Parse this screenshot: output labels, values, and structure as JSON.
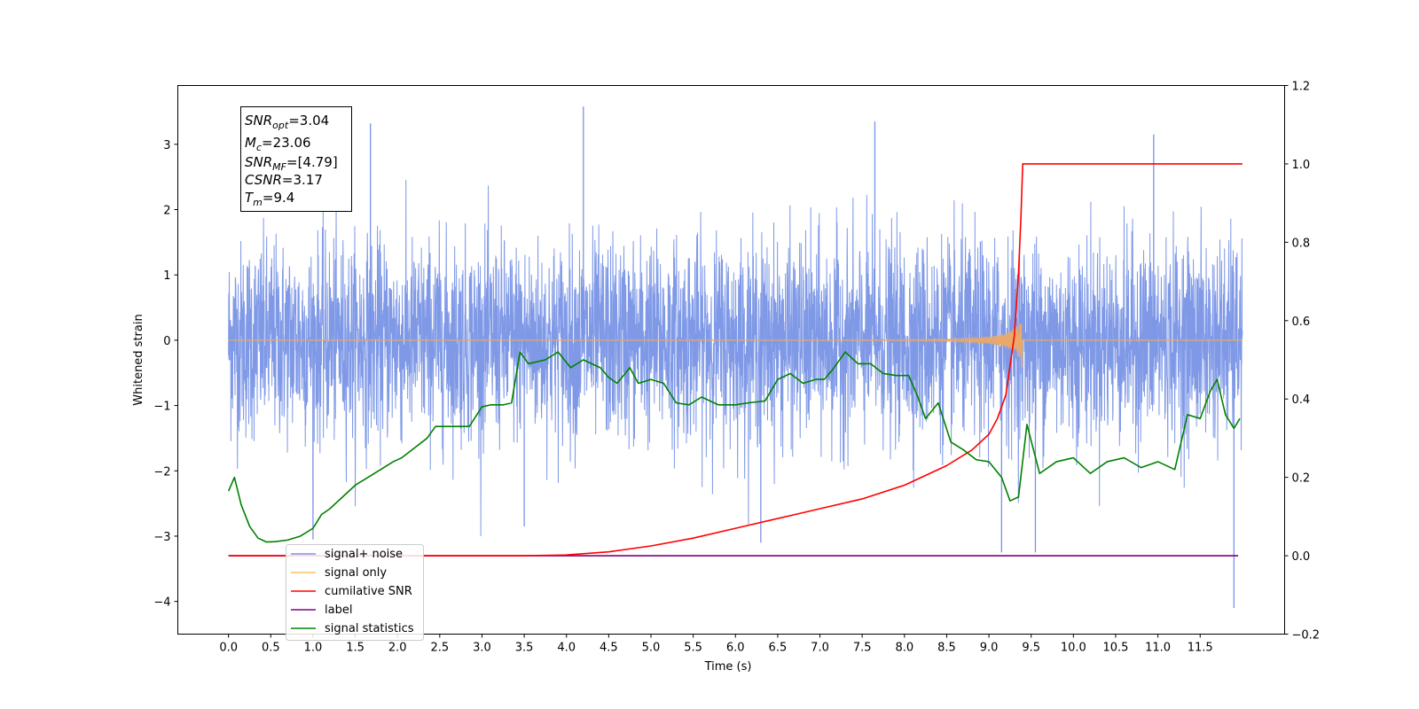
{
  "chart_data": {
    "type": "line",
    "xlabel": "Time (s)",
    "ylabel": "Whitened strain",
    "xlim": [
      -0.6,
      12.5
    ],
    "ylim": [
      -4.5,
      3.9
    ],
    "y2lim": [
      -0.2,
      1.2
    ],
    "x_ticks": [
      "0.0",
      "0.5",
      "1.0",
      "1.5",
      "2.0",
      "2.5",
      "3.0",
      "3.5",
      "4.0",
      "4.5",
      "5.0",
      "5.5",
      "6.0",
      "6.5",
      "7.0",
      "7.5",
      "8.0",
      "8.5",
      "9.0",
      "9.5",
      "10.0",
      "10.5",
      "11.0",
      "11.5"
    ],
    "y_ticks": [
      "3",
      "2",
      "1",
      "0",
      "−1",
      "−2",
      "−3",
      "−4"
    ],
    "y2_ticks": [
      "1.2",
      "1.0",
      "0.8",
      "0.6",
      "0.4",
      "0.2",
      "0.0",
      "−0.2"
    ],
    "annotation": {
      "lines": [
        {
          "sym": "SNR",
          "sub": "opt",
          "value": "=3.04"
        },
        {
          "sym": "M",
          "sub": "c",
          "value": "=23.06"
        },
        {
          "sym": "SNR",
          "sub": "MF",
          "value": "=[4.79]"
        },
        {
          "sym": "CSNR",
          "sub": "",
          "value": "=3.17"
        },
        {
          "sym": "T",
          "sub": "m",
          "value": "=9.4"
        }
      ]
    },
    "legend": {
      "position": "lower-left",
      "entries": [
        {
          "label": "signal+ noise",
          "color": "#7893e6"
        },
        {
          "label": "signal only",
          "color": "#fdbf5e"
        },
        {
          "label": "cumilative SNR",
          "color": "#ff0000"
        },
        {
          "label": "label",
          "color": "#800080"
        },
        {
          "label": "signal statistics",
          "color": "#008000"
        }
      ]
    },
    "series": [
      {
        "name": "signal+ noise",
        "axis": "left",
        "color": "#7893e6",
        "noise_sigma": 0.75,
        "x_range": [
          0.0,
          12.0
        ],
        "notable_spikes": [
          {
            "x": 4.2,
            "y": 3.58
          },
          {
            "x": 1.68,
            "y": 3.32
          },
          {
            "x": 7.65,
            "y": 3.35
          },
          {
            "x": 10.95,
            "y": 3.15
          },
          {
            "x": 11.9,
            "y": -4.1
          },
          {
            "x": 9.15,
            "y": -3.25
          },
          {
            "x": 9.55,
            "y": -3.25
          },
          {
            "x": 6.3,
            "y": -3.1
          },
          {
            "x": 1.0,
            "y": -3.05
          },
          {
            "x": 3.5,
            "y": -2.85
          }
        ]
      },
      {
        "name": "signal only",
        "axis": "left",
        "color": "#e8a96a",
        "chirp_end": 9.4,
        "peak_amplitude": 0.55,
        "x_range": [
          0.0,
          12.0
        ]
      },
      {
        "name": "cumilative SNR",
        "axis": "right",
        "color": "#ff0000",
        "x": [
          0.0,
          3.5,
          4.0,
          4.5,
          5.0,
          5.5,
          6.0,
          6.5,
          7.0,
          7.5,
          8.0,
          8.5,
          8.8,
          9.0,
          9.1,
          9.2,
          9.3,
          9.35,
          9.38,
          9.4,
          12.0
        ],
        "values": [
          0.0,
          0.0,
          0.002,
          0.01,
          0.025,
          0.045,
          0.07,
          0.095,
          0.12,
          0.145,
          0.18,
          0.23,
          0.27,
          0.31,
          0.35,
          0.41,
          0.56,
          0.72,
          0.87,
          1.0,
          1.0
        ]
      },
      {
        "name": "label",
        "axis": "right",
        "color": "#800080",
        "x": [
          0.0,
          11.95
        ],
        "values": [
          0.0,
          0.0
        ]
      },
      {
        "name": "signal statistics",
        "axis": "right",
        "color": "#008000",
        "x": [
          0.0,
          0.07,
          0.15,
          0.25,
          0.35,
          0.45,
          0.55,
          0.7,
          0.85,
          1.0,
          1.1,
          1.2,
          1.35,
          1.5,
          1.65,
          1.8,
          1.95,
          2.05,
          2.2,
          2.35,
          2.45,
          2.55,
          2.7,
          2.85,
          3.0,
          3.1,
          3.25,
          3.35,
          3.45,
          3.55,
          3.75,
          3.9,
          4.05,
          4.2,
          4.4,
          4.5,
          4.6,
          4.75,
          4.85,
          5.0,
          5.15,
          5.3,
          5.45,
          5.6,
          5.8,
          6.0,
          6.15,
          6.35,
          6.5,
          6.65,
          6.8,
          6.95,
          7.05,
          7.15,
          7.3,
          7.45,
          7.6,
          7.75,
          7.9,
          8.05,
          8.15,
          8.25,
          8.4,
          8.55,
          8.7,
          8.85,
          9.0,
          9.15,
          9.25,
          9.35,
          9.45,
          9.6,
          9.8,
          10.0,
          10.2,
          10.4,
          10.6,
          10.8,
          11.0,
          11.2,
          11.35,
          11.5,
          11.62,
          11.7,
          11.8,
          11.9,
          11.97
        ],
        "values": [
          0.165,
          0.2,
          0.13,
          0.075,
          0.045,
          0.035,
          0.036,
          0.04,
          0.05,
          0.07,
          0.105,
          0.12,
          0.15,
          0.18,
          0.2,
          0.22,
          0.24,
          0.25,
          0.275,
          0.3,
          0.33,
          0.33,
          0.33,
          0.33,
          0.38,
          0.385,
          0.385,
          0.39,
          0.52,
          0.49,
          0.5,
          0.52,
          0.48,
          0.5,
          0.48,
          0.455,
          0.44,
          0.48,
          0.44,
          0.45,
          0.44,
          0.39,
          0.385,
          0.405,
          0.385,
          0.385,
          0.39,
          0.395,
          0.45,
          0.465,
          0.44,
          0.45,
          0.45,
          0.475,
          0.52,
          0.49,
          0.49,
          0.465,
          0.46,
          0.46,
          0.41,
          0.35,
          0.39,
          0.29,
          0.27,
          0.245,
          0.24,
          0.2,
          0.14,
          0.15,
          0.335,
          0.21,
          0.24,
          0.25,
          0.21,
          0.24,
          0.25,
          0.225,
          0.24,
          0.22,
          0.36,
          0.35,
          0.42,
          0.45,
          0.36,
          0.325,
          0.35
        ]
      }
    ]
  }
}
